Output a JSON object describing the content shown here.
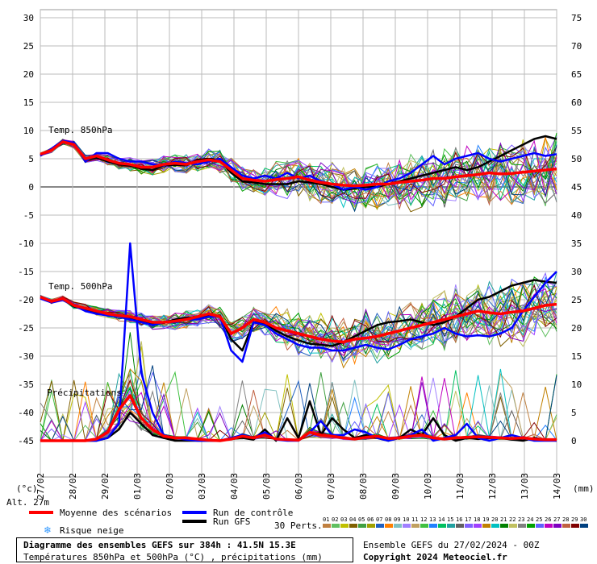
{
  "chart_data": {
    "type": "line",
    "x_ticks": [
      "27/02",
      "28/02",
      "29/02",
      "01/03",
      "02/03",
      "03/03",
      "04/03",
      "05/03",
      "06/03",
      "07/03",
      "08/03",
      "09/03",
      "10/03",
      "11/03",
      "12/03",
      "13/03",
      "14/03"
    ],
    "left_axis": {
      "unit": "(°c)",
      "ticks": [
        30,
        25,
        20,
        15,
        10,
        5,
        0,
        -5,
        -10,
        -15,
        -20,
        -25,
        -30,
        -35,
        -40,
        -45
      ],
      "range": [
        -45,
        30
      ]
    },
    "right_axis": {
      "unit": "(mm)",
      "ticks": [
        75,
        70,
        65,
        60,
        55,
        50,
        45,
        40,
        35,
        30,
        25,
        20,
        15,
        10,
        5,
        0
      ],
      "range": [
        0,
        75
      ]
    },
    "section_labels": {
      "t850": "Temp. 850hPa",
      "t500": "Temp. 500hPa",
      "precip": "Précipitations"
    },
    "altitude_label": "Alt. 27m",
    "series_t850": [
      {
        "name": "Moyenne des scénarios",
        "color": "#ff0000",
        "values": [
          5.8,
          6.5,
          8,
          7.5,
          5,
          5.5,
          4.8,
          4.2,
          4,
          3.5,
          3.5,
          4,
          4.2,
          4,
          4.5,
          4.8,
          4.5,
          3,
          1.5,
          1.2,
          1,
          1.3,
          1.5,
          1.8,
          1.2,
          0.8,
          0.5,
          0.3,
          0.2,
          0.3,
          0.5,
          0.5,
          0.8,
          1,
          1.2,
          1.5,
          1.5,
          1.8,
          2,
          2.2,
          2.5,
          2.3,
          2.4,
          2.6,
          2.8,
          3,
          3.2
        ]
      },
      {
        "name": "Run de contrôle",
        "color": "#0000ff",
        "values": [
          5.5,
          6.8,
          8.2,
          7.8,
          4.5,
          6,
          6,
          5,
          4.5,
          4.5,
          4,
          3.8,
          4.5,
          4.2,
          4,
          4.5,
          5,
          3.5,
          2,
          1.5,
          2,
          1.5,
          2.5,
          1.5,
          2,
          1,
          0.5,
          -0.5,
          0,
          -0.5,
          0,
          1,
          1.5,
          2.5,
          4,
          5.5,
          4,
          5,
          5.5,
          6,
          5,
          4.5,
          5,
          5.5,
          6,
          5.5,
          5.8
        ]
      },
      {
        "name": "Run GFS",
        "color": "#000000",
        "values": [
          5.6,
          6.6,
          7.9,
          7.6,
          4.8,
          5.2,
          4.5,
          4,
          3.8,
          3.2,
          3,
          3.8,
          3.9,
          3.8,
          4.8,
          5,
          4.8,
          2.5,
          1,
          0.8,
          0.5,
          0.5,
          0.5,
          1,
          0.8,
          0.5,
          0,
          -0.5,
          -0.3,
          0,
          0,
          0.5,
          1,
          1.5,
          2,
          2.5,
          3,
          3.5,
          3,
          3.5,
          4.5,
          5.5,
          6.5,
          7.5,
          8.5,
          9,
          8.5
        ]
      }
    ],
    "series_t500": [
      {
        "name": "Moyenne des scénarios",
        "color": "#ff0000",
        "values": [
          -19.5,
          -20.3,
          -19.8,
          -21,
          -21.5,
          -22,
          -22.5,
          -22.8,
          -23,
          -23.5,
          -24,
          -24,
          -23.8,
          -23.5,
          -23,
          -22.5,
          -23,
          -26,
          -25,
          -23.5,
          -24,
          -25,
          -25.5,
          -26,
          -26.5,
          -27,
          -27.3,
          -27.5,
          -27,
          -26.8,
          -26.5,
          -26,
          -25.5,
          -25,
          -24.5,
          -24,
          -23.5,
          -23,
          -22.5,
          -22,
          -22.3,
          -22.5,
          -22.2,
          -22,
          -21.5,
          -21,
          -20.8
        ]
      },
      {
        "name": "Run de contrôle",
        "color": "#0000ff",
        "values": [
          -19.8,
          -20.5,
          -20,
          -21,
          -22,
          -22.5,
          -22.8,
          -23,
          -23.5,
          -24,
          -24.5,
          -24,
          -24,
          -23.5,
          -23.5,
          -23,
          -23,
          -29,
          -31,
          -24,
          -24.5,
          -26,
          -27,
          -28,
          -28.5,
          -28.5,
          -29,
          -29,
          -28.5,
          -28,
          -28.5,
          -28.8,
          -28,
          -27,
          -26.5,
          -26,
          -25,
          -26,
          -26.5,
          -26.3,
          -26.5,
          -26,
          -25,
          -22,
          -19.5,
          -17,
          -15
        ]
      },
      {
        "name": "Run GFS",
        "color": "#000000",
        "values": [
          -19.6,
          -20.2,
          -19.9,
          -21.2,
          -21.8,
          -22.2,
          -22.5,
          -23,
          -23.2,
          -23.8,
          -24.2,
          -24.1,
          -23.5,
          -23.2,
          -23,
          -22.8,
          -22.8,
          -27,
          -29,
          -24,
          -24.2,
          -25.5,
          -26.5,
          -27.2,
          -27.8,
          -28,
          -28.2,
          -27.5,
          -26.5,
          -25.5,
          -24.5,
          -24,
          -23.8,
          -23.5,
          -24,
          -24.5,
          -24,
          -23,
          -21.5,
          -20,
          -19.5,
          -18.5,
          -17.5,
          -17,
          -16.5,
          -16.8,
          -17
        ]
      }
    ],
    "series_precip": [
      {
        "name": "Moyenne des scénarios",
        "color": "#ff0000",
        "values": [
          0,
          0,
          0,
          0,
          0,
          0.3,
          1.5,
          5.5,
          8,
          4,
          2,
          0.8,
          0.5,
          0.5,
          0.3,
          0.1,
          0,
          0.3,
          0.8,
          0.5,
          1,
          0.3,
          0.2,
          0.1,
          1.5,
          1,
          0.8,
          0.5,
          0.3,
          0.6,
          0.8,
          0.4,
          0.5,
          0.8,
          1,
          0.5,
          0.3,
          0.5,
          0.6,
          0.7,
          0.6,
          0.5,
          0.4,
          0.5,
          0.3,
          0.2,
          0.2
        ]
      },
      {
        "name": "Run de contrôle",
        "color": "#0000ff",
        "values": [
          0,
          0,
          0,
          0,
          0,
          0,
          0.5,
          3,
          35,
          12,
          5,
          1,
          0.5,
          0.2,
          0,
          0,
          0,
          0.5,
          1,
          0.5,
          1.5,
          0.2,
          0,
          0,
          1.5,
          3.5,
          1,
          1,
          2,
          1.5,
          0.5,
          0,
          0.5,
          1,
          2,
          0,
          0.5,
          1,
          3,
          0.5,
          0,
          0.5,
          1,
          0.5,
          0,
          0,
          0
        ]
      },
      {
        "name": "Run GFS",
        "color": "#000000",
        "values": [
          0,
          0,
          0,
          0,
          0,
          0,
          0.5,
          2,
          5,
          3,
          1,
          0.5,
          0,
          0,
          0,
          0,
          0,
          0.3,
          0.5,
          0.2,
          2,
          0,
          4,
          0.5,
          7,
          1,
          4,
          2,
          0.5,
          1,
          0.5,
          0,
          0.5,
          2,
          1,
          4,
          1,
          0,
          0.5,
          0.3,
          0.5,
          0.5,
          0.2,
          0,
          0.5,
          0.2,
          0
        ]
      }
    ],
    "perturbation_colors": [
      "#c08040",
      "#60c060",
      "#c0c000",
      "#806000",
      "#40a040",
      "#a0a000",
      "#2060c0",
      "#ff8000",
      "#80c0c0",
      "#a080ff",
      "#c0a060",
      "#40c040",
      "#2080ff",
      "#00c060",
      "#20a0a0",
      "#606060",
      "#8060ff",
      "#a040ff",
      "#c08000",
      "#00c0c0",
      "#008000",
      "#c0c060",
      "#808080",
      "#00a000",
      "#6060ff",
      "#c000c0",
      "#8000c0",
      "#c06040",
      "#800000",
      "#004080"
    ]
  },
  "legend": {
    "mean_label": "Moyenne des scénarios",
    "control_label": "Run de contrôle",
    "gfs_label": "Run GFS",
    "snow_label": "Risque neige",
    "perts_label": "30 Perts.",
    "pert_numbers": [
      "01",
      "02",
      "03",
      "04",
      "05",
      "06",
      "07",
      "08",
      "09",
      "10",
      "11",
      "12",
      "13",
      "14",
      "15",
      "16",
      "17",
      "18",
      "19",
      "20",
      "21",
      "22",
      "23",
      "24",
      "25",
      "26",
      "27",
      "28",
      "29",
      "30"
    ],
    "mean_color": "#ff0000",
    "control_color": "#0000ff",
    "gfs_color": "#000000"
  },
  "footer": {
    "title_line": "Diagramme des ensembles GEFS sur 384h : 41.5N 15.3E",
    "subtitle_line": "Températures 850hPa et 500hPa (°C) , précipitations (mm)",
    "run_info": "Ensemble GEFS du 27/02/2024 - 00Z",
    "copyright": "Copyright 2024 Meteociel.fr"
  }
}
